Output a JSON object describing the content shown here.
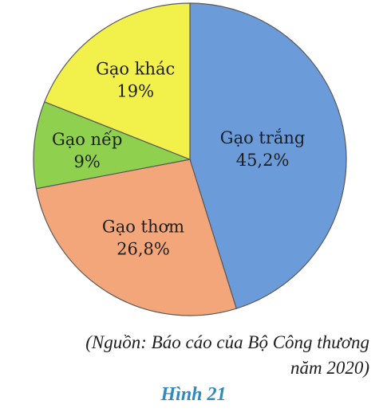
{
  "chart_data": {
    "type": "pie",
    "start_angle_deg": 0,
    "direction": "clockwise",
    "slices": [
      {
        "label": "Gạo trắng",
        "value": 45.2,
        "value_label": "45,2%",
        "color": "#6b9bd8"
      },
      {
        "label": "Gạo thơm",
        "value": 26.8,
        "value_label": "26,8%",
        "color": "#f3a67a"
      },
      {
        "label": "Gạo nếp",
        "value": 9,
        "value_label": "9%",
        "color": "#8fd04f"
      },
      {
        "label": "Gạo khác",
        "value": 19,
        "value_label": "19%",
        "color": "#f2f04a"
      }
    ]
  },
  "source": {
    "line1": "(Nguồn: Báo cáo của Bộ Công thương",
    "line2": "năm 2020)"
  },
  "caption": "Hình 21"
}
